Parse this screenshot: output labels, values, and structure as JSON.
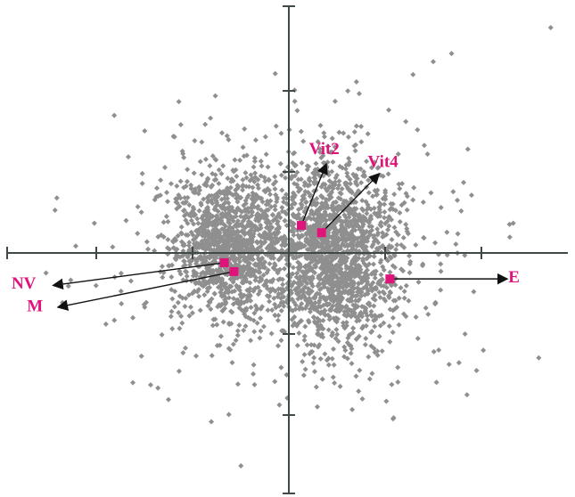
{
  "chart_data": {
    "type": "scatter",
    "title": "",
    "xlabel": "",
    "ylabel": "",
    "grid": false,
    "xlim": [
      -3,
      3
    ],
    "ylim": [
      -3,
      3
    ],
    "x_ticks": [
      -2,
      -1,
      1,
      2
    ],
    "y_ticks": [
      -2,
      -1,
      1,
      2
    ],
    "colors": {
      "background_points": "#8f8f8f",
      "highlight_points": "#e0137a",
      "labels": "#e0137a",
      "axes": "#3f4a44",
      "arrows": "#111111"
    },
    "background_cloud": {
      "approx_count": 3200,
      "clusters": [
        {
          "center": [
            -0.65,
            0.05
          ],
          "spread": [
            0.28,
            0.45
          ],
          "share": 0.3
        },
        {
          "center": [
            0.5,
            -0.1
          ],
          "spread": [
            0.3,
            0.55
          ],
          "share": 0.4
        },
        {
          "center": [
            0.1,
            0.35
          ],
          "spread": [
            0.6,
            0.4
          ],
          "share": 0.15
        },
        {
          "center": [
            0.0,
            0.0
          ],
          "spread": [
            0.9,
            0.85
          ],
          "share": 0.15
        }
      ],
      "outliers": [
        [
          2.72,
          2.78
        ],
        [
          1.69,
          2.46
        ],
        [
          1.5,
          2.36
        ],
        [
          1.29,
          2.2
        ],
        [
          -0.6,
          0.88
        ],
        [
          -1.69,
          0.4
        ],
        [
          -1.62,
          -0.8
        ],
        [
          1.83,
          -1.0
        ],
        [
          -1.62,
          -1.6
        ],
        [
          2.02,
          -1.2
        ],
        [
          1.95,
          -1.45
        ],
        [
          1.85,
          -1.75
        ],
        [
          1.75,
          0.65
        ]
      ]
    },
    "highlighted": [
      {
        "label": "Vit2",
        "x": 0.13,
        "y": 0.34
      },
      {
        "label": "Vit4",
        "x": 0.34,
        "y": 0.25
      },
      {
        "label": "NV",
        "x": -0.67,
        "y": -0.12
      },
      {
        "label": "M",
        "x": -0.57,
        "y": -0.23
      },
      {
        "label": "E",
        "x": 1.05,
        "y": -0.32
      }
    ],
    "arrows": [
      {
        "label": "Vit2",
        "from": [
          0.13,
          0.34
        ],
        "to": [
          0.39,
          1.1
        ],
        "label_at": [
          0.21,
          1.22
        ]
      },
      {
        "label": "Vit4",
        "from": [
          0.34,
          0.25
        ],
        "to": [
          0.94,
          0.98
        ],
        "label_at": [
          0.82,
          1.06
        ]
      },
      {
        "label": "NV",
        "from": [
          -0.67,
          -0.12
        ],
        "to": [
          -2.45,
          -0.4
        ],
        "label_at": [
          -2.88,
          -0.44
        ]
      },
      {
        "label": "M",
        "from": [
          -0.57,
          -0.23
        ],
        "to": [
          -2.4,
          -0.67
        ],
        "label_at": [
          -2.72,
          -0.72
        ]
      },
      {
        "label": "E",
        "from": [
          1.05,
          -0.32
        ],
        "to": [
          2.27,
          -0.32
        ],
        "label_at": [
          2.28,
          -0.36
        ]
      }
    ]
  }
}
